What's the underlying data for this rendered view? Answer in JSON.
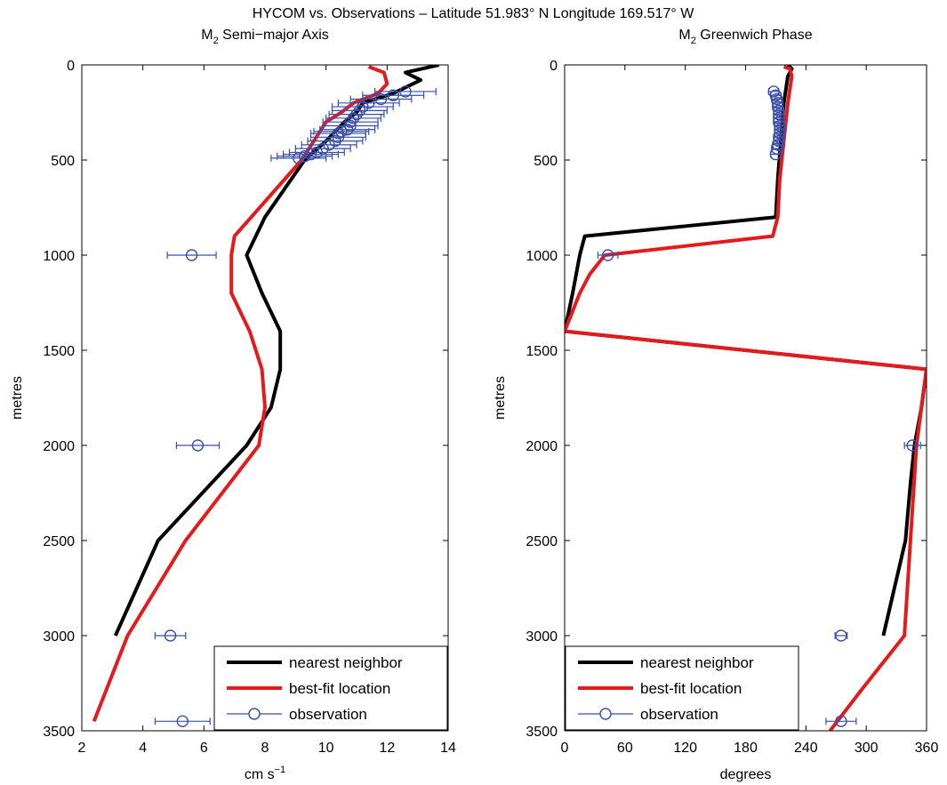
{
  "figure": {
    "title": "HYCOM vs. Observations – Latitude 51.983° N Longitude 169.517° W"
  },
  "colors": {
    "nearest": "#000000",
    "bestfit": "#e41a1c",
    "observation": "#3a4fa8"
  },
  "chart_data": [
    {
      "type": "line",
      "title_main": "M",
      "title_sub": "2",
      "title_rest": " Semi−major Axis",
      "xlabel_main": "cm s",
      "xlabel_sup": "−1",
      "ylabel": "metres",
      "xlim": [
        2,
        14
      ],
      "ylim": [
        0,
        3500
      ],
      "y_reversed": true,
      "grid": false,
      "legend_position": "bottom-right",
      "xticks": [
        2,
        4,
        6,
        8,
        10,
        12,
        14
      ],
      "yticks": [
        0,
        500,
        1000,
        1500,
        2000,
        2500,
        3000,
        3500
      ],
      "series": [
        {
          "name": "nearest neighbor",
          "x": [
            13.7,
            12.6,
            13.1,
            12.2,
            11.2,
            11.0,
            10.6,
            10.0,
            9.3,
            8.0,
            7.4,
            7.9,
            8.5,
            8.5,
            8.2,
            7.4,
            4.5,
            3.1
          ],
          "y": [
            0,
            40,
            80,
            150,
            200,
            250,
            300,
            400,
            500,
            800,
            1000,
            1200,
            1400,
            1600,
            1800,
            2000,
            2500,
            3000
          ]
        },
        {
          "name": "best-fit location",
          "x": [
            11.4,
            11.9,
            12.0,
            11.7,
            10.9,
            10.5,
            10.0,
            9.2,
            7.0,
            6.9,
            6.9,
            7.5,
            7.9,
            8.0,
            7.8,
            5.4,
            3.5,
            2.4
          ],
          "y": [
            10,
            40,
            100,
            150,
            200,
            250,
            300,
            500,
            900,
            1000,
            1200,
            1400,
            1600,
            1800,
            2000,
            2500,
            3000,
            3450
          ]
        },
        {
          "name": "observation",
          "x": [
            12.6,
            12.2,
            11.8,
            11.4,
            11.2,
            11.1,
            11.0,
            10.9,
            10.8,
            10.8,
            10.7,
            10.5,
            10.4,
            10.4,
            10.3,
            10.1,
            9.9,
            9.7,
            9.5,
            9.3,
            9.1,
            5.6,
            5.8,
            4.9,
            5.3
          ],
          "y": [
            140,
            160,
            180,
            200,
            220,
            240,
            260,
            280,
            300,
            320,
            340,
            350,
            360,
            380,
            400,
            420,
            440,
            460,
            470,
            480,
            490,
            1000,
            2000,
            3000,
            3450
          ],
          "xerr": [
            1.0,
            1.0,
            1.0,
            1.0,
            1.0,
            0.9,
            0.9,
            0.9,
            0.9,
            0.9,
            0.9,
            0.9,
            0.9,
            0.9,
            0.9,
            0.9,
            0.9,
            0.9,
            0.9,
            0.9,
            0.9,
            0.8,
            0.7,
            0.5,
            0.9
          ]
        }
      ]
    },
    {
      "type": "line",
      "title_main": "M",
      "title_sub": "2",
      "title_rest": " Greenwich Phase",
      "xlabel_main": "degrees",
      "xlabel_sup": "",
      "ylabel": "metres",
      "xlim": [
        0,
        360
      ],
      "ylim": [
        0,
        3500
      ],
      "y_reversed": true,
      "grid": false,
      "legend_position": "bottom-left",
      "xticks": [
        0,
        60,
        120,
        180,
        240,
        300,
        360
      ],
      "yticks": [
        0,
        500,
        1000,
        1500,
        2000,
        2500,
        3000,
        3500
      ],
      "series": [
        {
          "name": "nearest neighbor",
          "x": [
            222,
            226,
            222,
            218,
            215,
            212,
            210,
            20,
            15,
            8,
            0,
            360,
            355,
            348,
            344,
            339,
            317
          ],
          "y": [
            0,
            20,
            60,
            200,
            400,
            600,
            800,
            900,
            1000,
            1200,
            1400,
            1600,
            1800,
            2000,
            2200,
            2500,
            3000
          ]
        },
        {
          "name": "best-fit location",
          "x": [
            218,
            224,
            226,
            222,
            218,
            214,
            212,
            207,
            40,
            25,
            15,
            0,
            360,
            355,
            350,
            344,
            338,
            293,
            264
          ],
          "y": [
            10,
            20,
            60,
            200,
            400,
            600,
            800,
            900,
            1000,
            1100,
            1200,
            1400,
            1600,
            1800,
            2000,
            2500,
            3000,
            3300,
            3500
          ]
        },
        {
          "name": "observation",
          "x": [
            208,
            210,
            211,
            212,
            212,
            213,
            213,
            213,
            213,
            214,
            214,
            214,
            213,
            213,
            212,
            211,
            210,
            43,
            346,
            275,
            275
          ],
          "y": [
            140,
            160,
            180,
            200,
            220,
            240,
            260,
            280,
            300,
            320,
            340,
            360,
            380,
            400,
            420,
            440,
            470,
            1000,
            2000,
            3000,
            3450
          ],
          "xerr": [
            5,
            5,
            5,
            5,
            5,
            5,
            5,
            5,
            5,
            5,
            5,
            5,
            5,
            5,
            5,
            5,
            5,
            10,
            8,
            6,
            15
          ]
        }
      ]
    }
  ]
}
